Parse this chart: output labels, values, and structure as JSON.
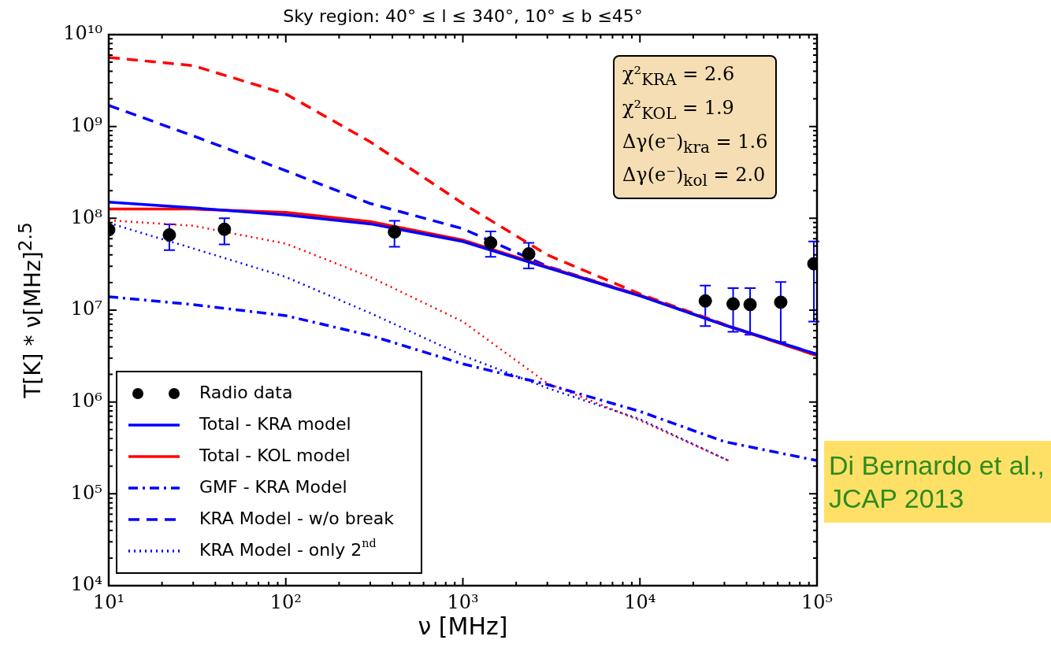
{
  "chart_data": {
    "type": "line",
    "title": "Sky region: 40° ≤ l ≤  340°, 10° ≤ b ≤45°",
    "xlabel": "ν [MHz]",
    "ylabel": "T[K]  *  ν[MHz]$^{2.5}$",
    "annotations": [
      "χ²$_{KRA}$ = 2.6",
      "χ²$_{KOL}$ = 1.9",
      "Δγ(e⁻)$_{kra}$ = 1.6",
      "Δγ(e⁻)$_{kol}$ = 2.0",
      "Di Bernardo et al., JCAP 2013"
    ],
    "log": "xy",
    "legend": "bottom left",
    "xlim": [
      10,
      100000
    ],
    "ylim": [
      10000,
      10000000000
    ],
    "xticks": [
      {
        "value": 10,
        "label": "10¹"
      },
      {
        "value": 20,
        "label": null
      },
      {
        "value": 30,
        "label": null
      },
      {
        "value": 40,
        "label": null
      },
      {
        "value": 50,
        "label": null
      },
      {
        "value": 60,
        "label": null
      },
      {
        "value": 70,
        "label": null
      },
      {
        "value": 80,
        "label": null
      },
      {
        "value": 90,
        "label": null
      },
      {
        "value": 100,
        "label": "10²"
      },
      {
        "value": 200,
        "label": null
      },
      {
        "value": 300,
        "label": null
      },
      {
        "value": 400,
        "label": null
      },
      {
        "value": 500,
        "label": null
      },
      {
        "value": 600,
        "label": null
      },
      {
        "value": 700,
        "label": null
      },
      {
        "value": 800,
        "label": null
      },
      {
        "value": 900,
        "label": null
      },
      {
        "value": 1000,
        "label": "10³"
      },
      {
        "value": 2000,
        "label": null
      },
      {
        "value": 3000,
        "label": null
      },
      {
        "value": 4000,
        "label": null
      },
      {
        "value": 5000,
        "label": null
      },
      {
        "value": 6000,
        "label": null
      },
      {
        "value": 7000,
        "label": null
      },
      {
        "value": 8000,
        "label": null
      },
      {
        "value": 9000,
        "label": null
      },
      {
        "value": 10000,
        "label": "10⁴"
      },
      {
        "value": 20000,
        "label": null
      },
      {
        "value": 30000,
        "label": null
      },
      {
        "value": 40000,
        "label": null
      },
      {
        "value": 50000,
        "label": null
      },
      {
        "value": 60000,
        "label": null
      },
      {
        "value": 70000,
        "label": null
      },
      {
        "value": 80000,
        "label": null
      },
      {
        "value": 90000,
        "label": null
      },
      {
        "value": 100000,
        "label": "10⁵"
      }
    ],
    "yticks": [
      {
        "value": 10000,
        "label": "10⁴"
      },
      {
        "value": 20000,
        "label": null
      },
      {
        "value": 30000,
        "label": null
      },
      {
        "value": 40000,
        "label": null
      },
      {
        "value": 50000,
        "label": null
      },
      {
        "value": 60000,
        "label": null
      },
      {
        "value": 70000,
        "label": null
      },
      {
        "value": 80000,
        "label": null
      },
      {
        "value": 90000,
        "label": null
      },
      {
        "value": 100000,
        "label": "10⁵"
      },
      {
        "value": 200000,
        "label": null
      },
      {
        "value": 300000,
        "label": null
      },
      {
        "value": 400000,
        "label": null
      },
      {
        "value": 500000,
        "label": null
      },
      {
        "value": 600000,
        "label": null
      },
      {
        "value": 700000,
        "label": null
      },
      {
        "value": 800000,
        "label": null
      },
      {
        "value": 900000,
        "label": null
      },
      {
        "value": 1000000,
        "label": "10⁶"
      },
      {
        "value": 2000000,
        "label": null
      },
      {
        "value": 3000000,
        "label": null
      },
      {
        "value": 4000000,
        "label": null
      },
      {
        "value": 5000000,
        "label": null
      },
      {
        "value": 6000000,
        "label": null
      },
      {
        "value": 7000000,
        "label": null
      },
      {
        "value": 8000000,
        "label": null
      },
      {
        "value": 9000000,
        "label": null
      },
      {
        "value": 10000000,
        "label": "10⁷"
      },
      {
        "value": 20000000,
        "label": null
      },
      {
        "value": 30000000,
        "label": null
      },
      {
        "value": 40000000,
        "label": null
      },
      {
        "value": 50000000,
        "label": null
      },
      {
        "value": 60000000,
        "label": null
      },
      {
        "value": 70000000,
        "label": null
      },
      {
        "value": 80000000,
        "label": null
      },
      {
        "value": 90000000,
        "label": null
      },
      {
        "value": 100000000,
        "label": "10⁸"
      },
      {
        "value": 200000000,
        "label": null
      },
      {
        "value": 300000000,
        "label": null
      },
      {
        "value": 400000000,
        "label": null
      },
      {
        "value": 500000000,
        "label": null
      },
      {
        "value": 600000000,
        "label": null
      },
      {
        "value": 700000000,
        "label": null
      },
      {
        "value": 800000000,
        "label": null
      },
      {
        "value": 900000000,
        "label": null
      },
      {
        "value": 1000000000,
        "label": "10⁹"
      },
      {
        "value": 2000000000,
        "label": null
      },
      {
        "value": 3000000000,
        "label": null
      },
      {
        "value": 4000000000,
        "label": null
      },
      {
        "value": 5000000000,
        "label": null
      },
      {
        "value": 6000000000,
        "label": null
      },
      {
        "value": 7000000000,
        "label": null
      },
      {
        "value": 8000000000,
        "label": null
      },
      {
        "value": 9000000000,
        "label": null
      },
      {
        "value": 10000000000,
        "label": "10¹⁰"
      }
    ],
    "series": [
      {
        "name": "Radio data",
        "type": "scatter",
        "marker": "circle",
        "color": "#000000",
        "x": [
          10,
          22,
          45,
          411,
          1435,
          2355,
          23400,
          33600,
          41900,
          62400,
          96000
        ],
        "values": [
          75000000,
          66000000,
          76000000,
          71000000,
          54000000,
          41000000,
          12600000,
          11700000,
          11500000,
          12200000,
          32000000
        ],
        "errors": [
          null,
          [
            45000000,
            86000000
          ],
          [
            52000000,
            100000000
          ],
          [
            49000000,
            94000000
          ],
          [
            38000000,
            72000000
          ],
          [
            28500000,
            54000000
          ],
          [
            6700000,
            18500000
          ],
          [
            5800000,
            17400000
          ],
          [
            5400000,
            17400000
          ],
          [
            4500000,
            20300000
          ],
          [
            7500000,
            56000000
          ]
        ]
      },
      {
        "name": "Total - KRA model",
        "line_style": "solid",
        "color": "#0000ff",
        "x": [
          10,
          30,
          100,
          300,
          1000,
          3000,
          10000,
          30000,
          100000
        ],
        "values": [
          150000000,
          130000000,
          109000000,
          87000000,
          56000000,
          29000000,
          14300000,
          6900000,
          3300000
        ]
      },
      {
        "name": "Total - KOL model",
        "line_style": "solid",
        "color": "#ff0000",
        "x": [
          10,
          30,
          100,
          300,
          1000,
          3000,
          10000,
          30000,
          100000
        ],
        "values": [
          126000000,
          126000000,
          116000000,
          92000000,
          58000000,
          29500000,
          14500000,
          6900000,
          3200000
        ]
      },
      {
        "name": "GMF - KRA Model",
        "line_style": "dashdot",
        "color": "#0000ff",
        "x": [
          10,
          30,
          100,
          300,
          1000,
          3000,
          10000,
          30000,
          100000
        ],
        "values": [
          14000000,
          11500000,
          8700000,
          5300000,
          2600000,
          1550000,
          790000,
          370000,
          230000
        ]
      },
      {
        "name": "KRA Model - w/o break",
        "line_style": "dashed",
        "color": "#0000ff",
        "x": [
          10,
          30,
          100,
          300,
          1000,
          3000,
          10000,
          30000,
          100000
        ],
        "values": [
          1700000000,
          790000000,
          330000000,
          145000000,
          77000000,
          30000000,
          14500000,
          6900000,
          3300000
        ]
      },
      {
        "name": "KRA Model - only 2$^{nd}$",
        "line_style": "dotted",
        "color": "#0000ff",
        "x": [
          10,
          30,
          100,
          300,
          1000,
          3000,
          10000,
          31600
        ],
        "values": [
          89000000,
          47000000,
          23000000,
          9300000,
          3200000,
          1420000,
          650000,
          230000
        ]
      },
      {
        "line_style": "dashed",
        "color": "#ff0000",
        "x": [
          10,
          30,
          100,
          300,
          1000,
          3000,
          10000,
          30000,
          100000
        ],
        "values": [
          5650000000,
          4600000000,
          2260000000,
          680000000,
          145000000,
          40000000,
          15000000,
          7000000,
          3200000
        ]
      },
      {
        "line_style": "dotted",
        "color": "#ff0000",
        "x": [
          10,
          30,
          100,
          300,
          1000,
          3000,
          10000,
          31600
        ],
        "values": [
          95000000,
          83000000,
          53000000,
          23000000,
          7500000,
          1600000,
          630000,
          230000
        ]
      }
    ]
  }
}
